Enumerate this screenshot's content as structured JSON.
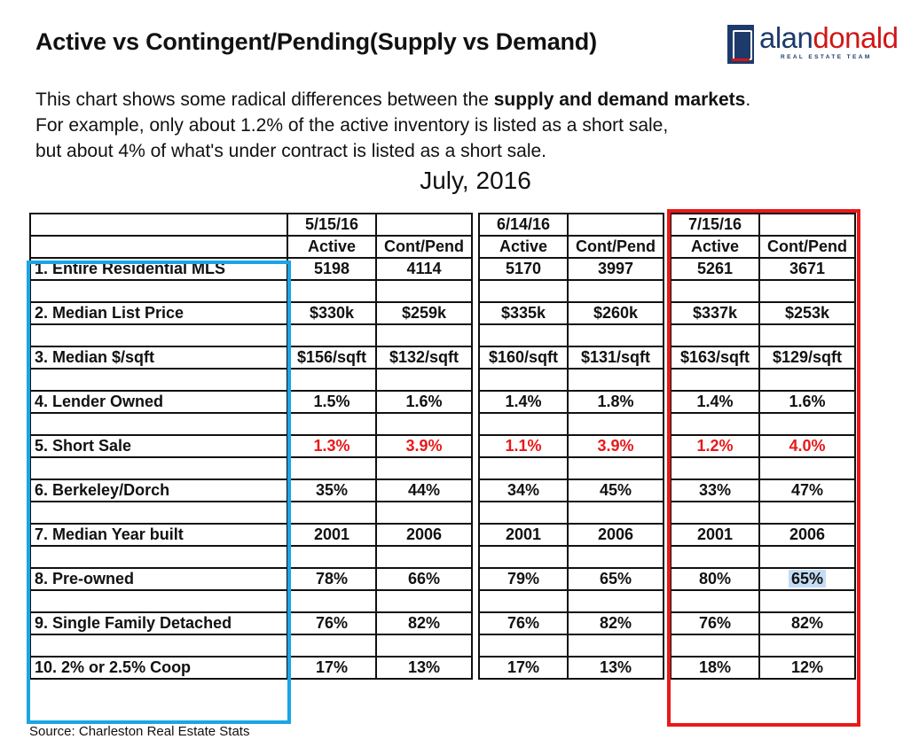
{
  "title": "Active vs Contingent/Pending(Supply vs Demand)",
  "logo": {
    "word_a": "alan",
    "word_b": "donald",
    "tagline": "REAL ESTATE TEAM"
  },
  "description": {
    "line1_pre": "This chart shows some radical differences between the ",
    "line1_bold": "supply and demand markets",
    "line1_post": ".",
    "line2": "For example, only about 1.2% of the active inventory is listed as a short sale,",
    "line3": "but about 4% of what's under contract is listed as a short sale."
  },
  "subtitle": "July, 2016",
  "source": "Source: Charleston Real Estate Stats",
  "colors": {
    "highlight_red": "#e8191a",
    "frame_blue": "#1aa5e6",
    "frame_red": "#e8191a",
    "logo_navy": "#1d3a6b"
  },
  "chart_data": {
    "type": "table",
    "groups": [
      {
        "date": "5/15/16",
        "columns": [
          "Active",
          "Cont/Pend"
        ]
      },
      {
        "date": "6/14/16",
        "columns": [
          "Active",
          "Cont/Pend"
        ]
      },
      {
        "date": "7/15/16",
        "columns": [
          "Active",
          "Cont/Pend"
        ]
      }
    ],
    "rows": [
      {
        "label": "1. Entire Residential MLS",
        "values": [
          [
            "5198",
            "4114"
          ],
          [
            "5170",
            "3997"
          ],
          [
            "5261",
            "3671"
          ]
        ]
      },
      {
        "label": "2. Median List Price",
        "values": [
          [
            "$330k",
            "$259k"
          ],
          [
            "$335k",
            "$260k"
          ],
          [
            "$337k",
            "$253k"
          ]
        ]
      },
      {
        "label": "3. Median $/sqft",
        "values": [
          [
            "$156/sqft",
            "$132/sqft"
          ],
          [
            "$160/sqft",
            "$131/sqft"
          ],
          [
            "$163/sqft",
            "$129/sqft"
          ]
        ]
      },
      {
        "label": "4. Lender Owned",
        "values": [
          [
            "1.5%",
            "1.6%"
          ],
          [
            "1.4%",
            "1.8%"
          ],
          [
            "1.4%",
            "1.6%"
          ]
        ]
      },
      {
        "label": "5. Short Sale",
        "highlight": true,
        "values": [
          [
            "1.3%",
            "3.9%"
          ],
          [
            "1.1%",
            "3.9%"
          ],
          [
            "1.2%",
            "4.0%"
          ]
        ]
      },
      {
        "label": "6. Berkeley/Dorch",
        "values": [
          [
            "35%",
            "44%"
          ],
          [
            "34%",
            "45%"
          ],
          [
            "33%",
            "47%"
          ]
        ]
      },
      {
        "label": "7. Median Year built",
        "values": [
          [
            "2001",
            "2006"
          ],
          [
            "2001",
            "2006"
          ],
          [
            "2001",
            "2006"
          ]
        ]
      },
      {
        "label": "8. Pre-owned",
        "values": [
          [
            "78%",
            "66%"
          ],
          [
            "79%",
            "65%"
          ],
          [
            "80%",
            "65%"
          ]
        ]
      },
      {
        "label": "9. Single Family Detached",
        "values": [
          [
            "76%",
            "82%"
          ],
          [
            "76%",
            "82%"
          ],
          [
            "76%",
            "82%"
          ]
        ]
      },
      {
        "label": "10. 2% or 2.5% Coop",
        "values": [
          [
            "17%",
            "13%"
          ],
          [
            "17%",
            "13%"
          ],
          [
            "18%",
            "12%"
          ]
        ]
      }
    ],
    "selected_cell": {
      "row": 7,
      "group": 2,
      "column": 1
    }
  }
}
